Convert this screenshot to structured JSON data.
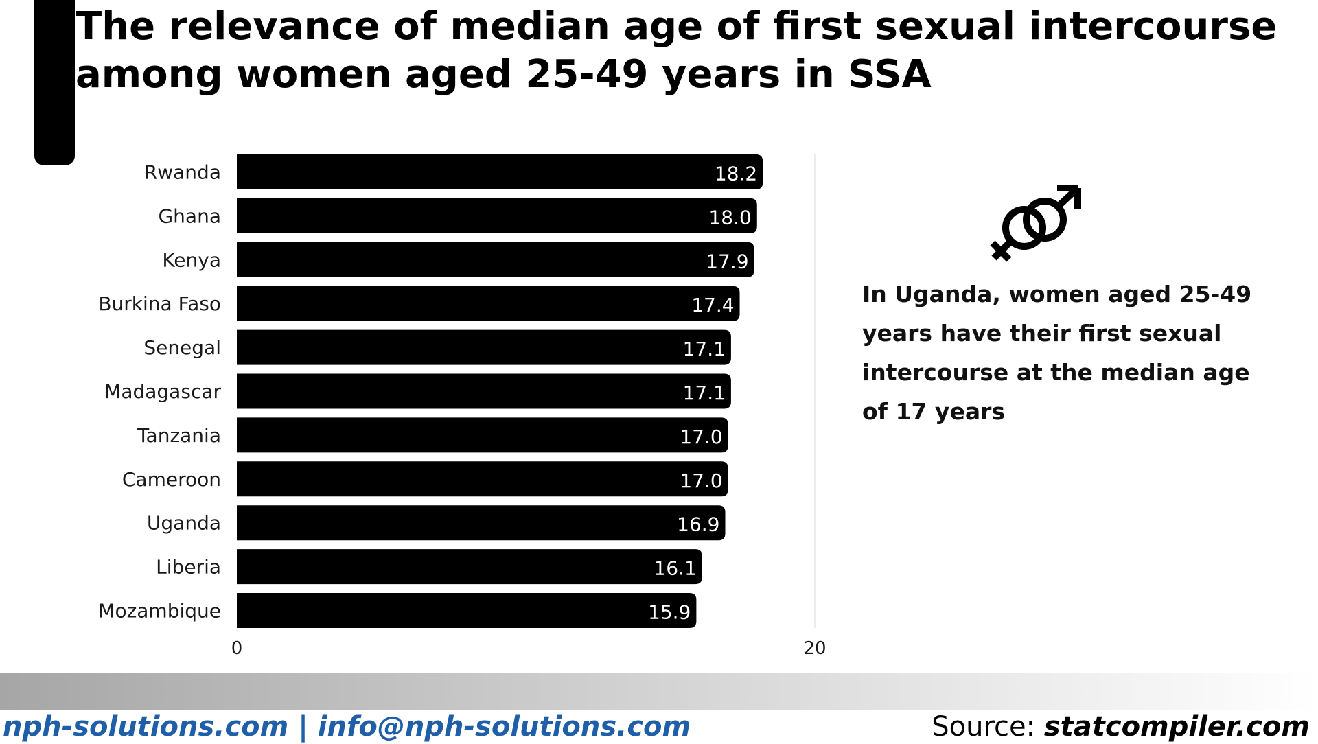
{
  "title": {
    "line1": "The relevance of median age of first sexual intercourse",
    "line2": "among women aged 25-49 years in SSA"
  },
  "chart_data": {
    "type": "bar",
    "orientation": "horizontal",
    "categories": [
      "Rwanda",
      "Ghana",
      "Kenya",
      "Burkina Faso",
      "Senegal",
      "Madagascar",
      "Tanzania",
      "Cameroon",
      "Uganda",
      "Liberia",
      "Mozambique"
    ],
    "values": [
      18.2,
      18.0,
      17.9,
      17.4,
      17.1,
      17.1,
      17.0,
      17.0,
      16.9,
      16.1,
      15.9
    ],
    "value_labels": [
      "18.2",
      "18.0",
      "17.9",
      "17.4",
      "17.1",
      "17.1",
      "17.0",
      "17.0",
      "16.9",
      "16.1",
      "15.9"
    ],
    "xticks": [
      "0",
      "20"
    ],
    "xlim": [
      0,
      20
    ],
    "bar_color": "#000000",
    "grid": true
  },
  "note": {
    "text": "In Uganda, women aged 25-49 years have their first sexual intercourse at the median age of 17 years",
    "icon": "gender-symbols-icon"
  },
  "footer": {
    "contact": "nph-solutions.com | info@nph-solutions.com",
    "source_prefix": "Source:",
    "source_site": "statcompiler.com",
    "contact_color": "#1f5fa8"
  }
}
